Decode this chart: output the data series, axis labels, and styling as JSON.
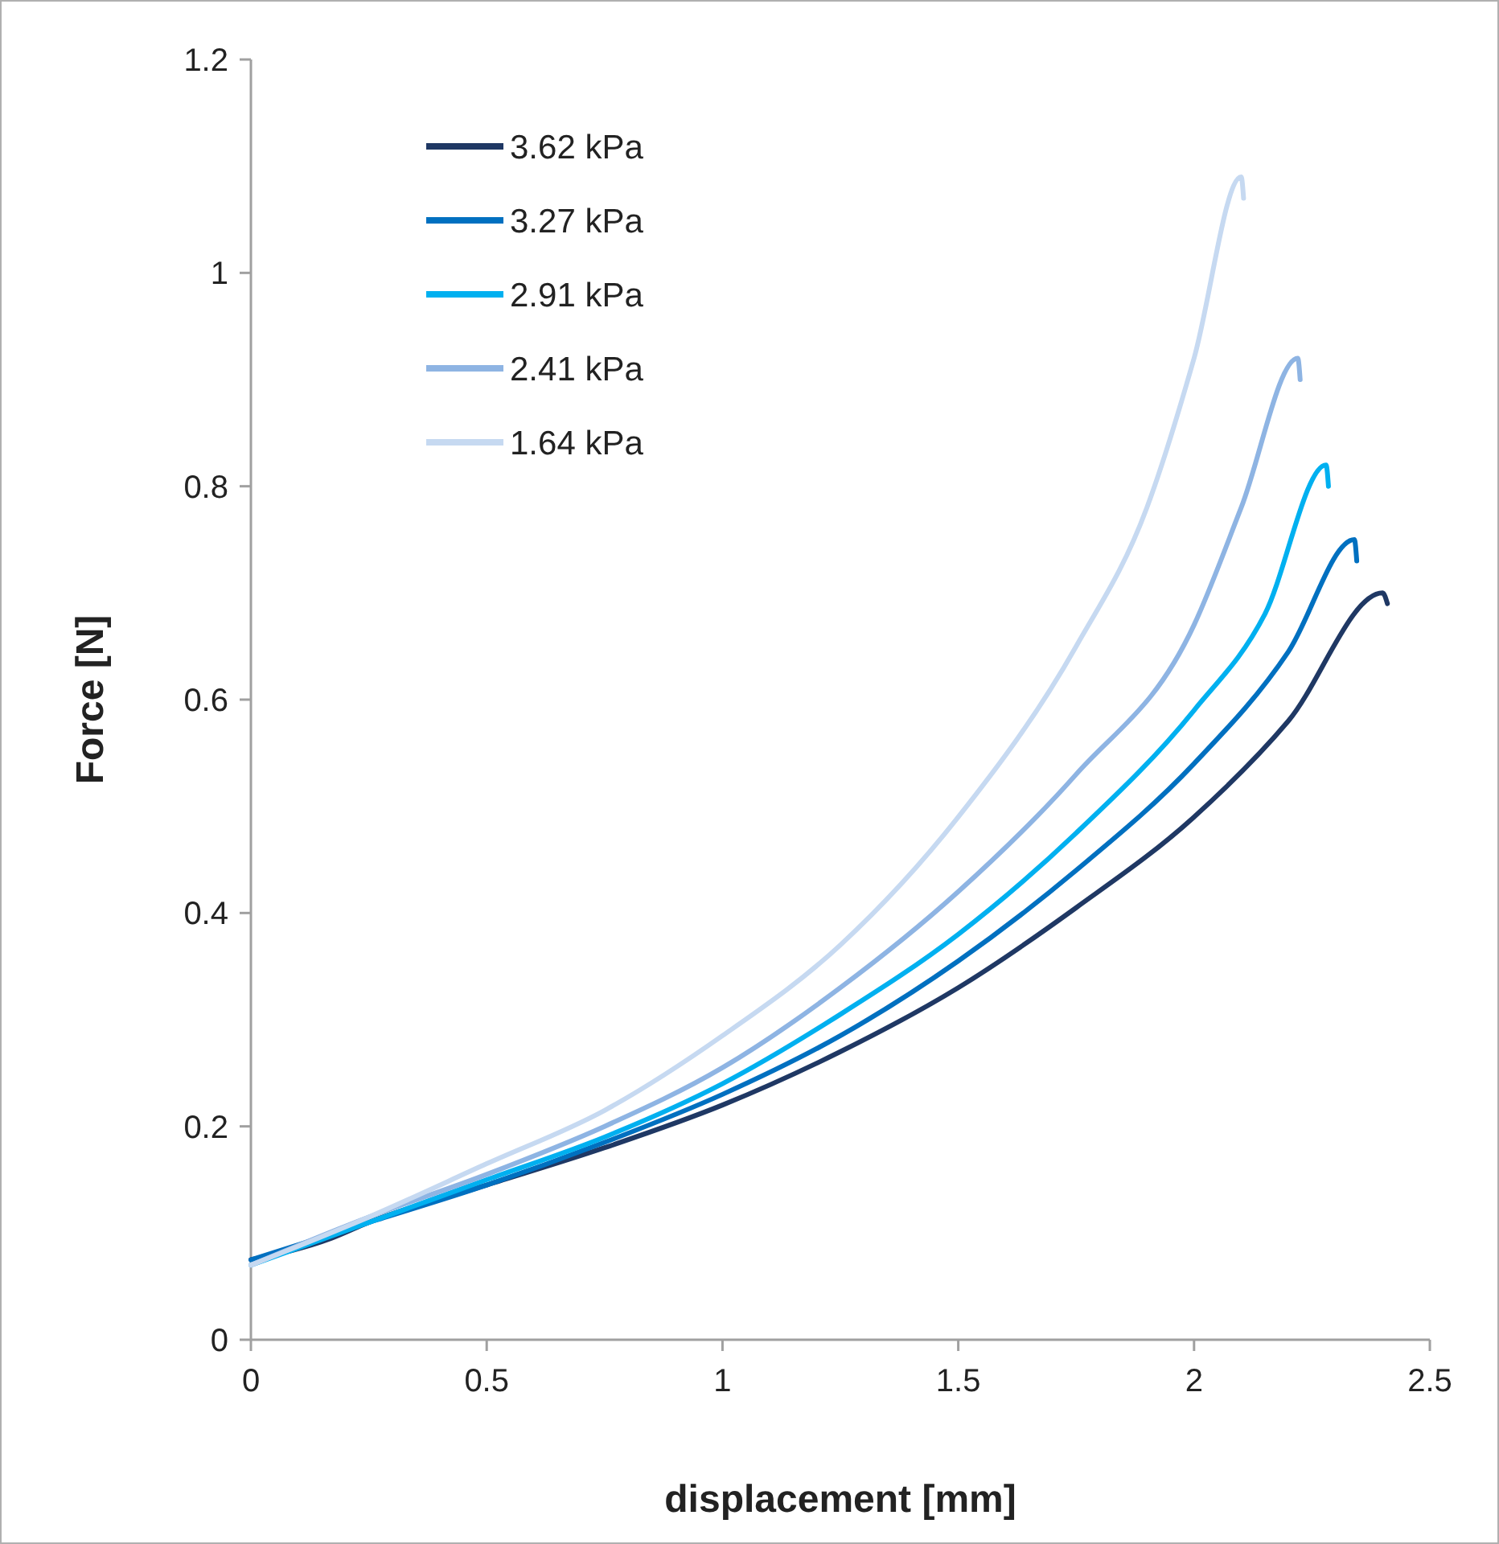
{
  "chart_data": {
    "type": "line",
    "xlabel": "displacement [mm]",
    "ylabel": "Force [N]",
    "xlim": [
      0,
      2.5
    ],
    "xticks": [
      0,
      0.5,
      1,
      1.5,
      2,
      2.5
    ],
    "ylim": [
      0,
      1.2
    ],
    "yticks": [
      0,
      0.2,
      0.4,
      0.6,
      0.8,
      1,
      1.2
    ],
    "grid": false,
    "legend": "top left",
    "line_style": "solid",
    "series": [
      {
        "name": "3.62 kPa",
        "color": "#1f3864",
        "x": [
          0,
          0.17,
          0.25,
          0.5,
          0.75,
          1,
          1.25,
          1.5,
          1.75,
          2,
          2.2,
          2.4,
          2.41
        ],
        "values": [
          0.075,
          0.095,
          0.11,
          0.145,
          0.18,
          0.22,
          0.27,
          0.33,
          0.405,
          0.49,
          0.58,
          0.7,
          0.69
        ]
      },
      {
        "name": "3.27 kPa",
        "color": "#0070c0",
        "x": [
          0,
          0.25,
          0.5,
          0.75,
          1,
          1.25,
          1.5,
          1.75,
          2,
          2.2,
          2.34,
          2.345
        ],
        "values": [
          0.075,
          0.11,
          0.145,
          0.185,
          0.23,
          0.285,
          0.355,
          0.44,
          0.54,
          0.645,
          0.75,
          0.73
        ]
      },
      {
        "name": "2.91 kPa",
        "color": "#00b0f0",
        "x": [
          0,
          0.25,
          0.5,
          0.75,
          1,
          1.25,
          1.5,
          1.75,
          2,
          2.15,
          2.28,
          2.285
        ],
        "values": [
          0.07,
          0.11,
          0.15,
          0.19,
          0.24,
          0.305,
          0.38,
          0.475,
          0.59,
          0.68,
          0.82,
          0.8
        ]
      },
      {
        "name": "2.41 kPa",
        "color": "#8eb4e3",
        "x": [
          0,
          0.25,
          0.5,
          0.75,
          1,
          1.25,
          1.5,
          1.75,
          2,
          2.1,
          2.22,
          2.225
        ],
        "values": [
          0.07,
          0.115,
          0.155,
          0.2,
          0.255,
          0.33,
          0.42,
          0.53,
          0.67,
          0.78,
          0.92,
          0.9
        ]
      },
      {
        "name": "1.64 kPa",
        "color": "#c6d9f1",
        "x": [
          0,
          0.25,
          0.5,
          0.75,
          1,
          1.25,
          1.5,
          1.75,
          1.9,
          2,
          2.1,
          2.105
        ],
        "values": [
          0.07,
          0.115,
          0.165,
          0.215,
          0.285,
          0.37,
          0.49,
          0.65,
          0.78,
          0.92,
          1.09,
          1.07
        ]
      }
    ]
  }
}
